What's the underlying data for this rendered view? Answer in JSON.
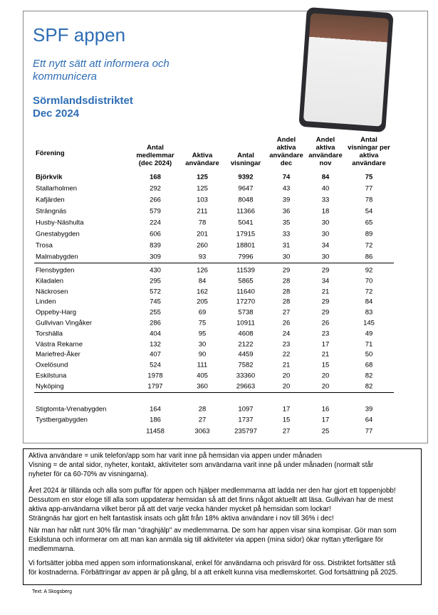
{
  "header": {
    "title": "SPF appen",
    "subtitle_lines": [
      "Ett nytt sätt att informera och",
      "kommunicera"
    ],
    "district": "Sörmlandsdistriktet",
    "period": "Dec 2024"
  },
  "table": {
    "columns": [
      "Förening",
      "Antal medlemmar (dec 2024)",
      "Aktiva användare",
      "Antal visningar",
      "Andel aktiva användare dec",
      "Andel aktiva användare nov",
      "Antal visningar per aktiva användare"
    ],
    "groups": [
      [
        [
          "Björkvik",
          168,
          125,
          9392,
          74,
          84,
          75
        ],
        [
          "Stallarholmen",
          292,
          125,
          9647,
          43,
          40,
          77
        ],
        [
          "Kafjärden",
          266,
          103,
          8048,
          39,
          33,
          78
        ],
        [
          "Strängnäs",
          579,
          211,
          11366,
          36,
          18,
          54
        ],
        [
          "Husby-Näshulta",
          224,
          78,
          5041,
          35,
          30,
          65
        ],
        [
          "Gnestabygden",
          606,
          201,
          17915,
          33,
          30,
          89
        ],
        [
          "Trosa",
          839,
          260,
          18801,
          31,
          34,
          72
        ],
        [
          "Malmabygden",
          309,
          93,
          7996,
          30,
          30,
          86
        ]
      ],
      [
        [
          "Flensbygden",
          430,
          126,
          11539,
          29,
          29,
          92
        ],
        [
          "Kiladalen",
          295,
          84,
          5865,
          28,
          34,
          70
        ],
        [
          "Näckrosen",
          572,
          162,
          11640,
          28,
          21,
          72
        ],
        [
          "Linden",
          745,
          205,
          17270,
          28,
          29,
          84
        ],
        [
          "Oppeby-Harg",
          255,
          69,
          5738,
          27,
          29,
          83
        ],
        [
          "Gullvivan Vingåker",
          286,
          75,
          10911,
          26,
          26,
          145
        ],
        [
          "Torshälla",
          404,
          95,
          4608,
          24,
          23,
          49
        ],
        [
          "Västra Rekarne",
          132,
          30,
          2122,
          23,
          17,
          71
        ],
        [
          "Mariefred-Åker",
          407,
          90,
          4459,
          22,
          21,
          50
        ],
        [
          "Oxelösund",
          524,
          111,
          7582,
          21,
          15,
          68
        ],
        [
          "Eskilstuna",
          1978,
          405,
          33360,
          20,
          20,
          82
        ],
        [
          "Nyköping",
          1797,
          360,
          29663,
          20,
          20,
          82
        ]
      ],
      [
        [
          "Stigtomta-Vrenabygden",
          164,
          28,
          1097,
          17,
          16,
          39
        ],
        [
          "Tystbergabygden",
          186,
          27,
          1737,
          15,
          17,
          64
        ]
      ]
    ],
    "totals": [
      11458,
      3063,
      235797,
      27,
      25,
      77
    ]
  },
  "notes": {
    "paragraphs": [
      [
        "Aktiva användare = unik telefon/app som har varit inne på hemsidan via appen under månaden",
        "Visning = de antal sidor, nyheter, kontakt, aktiviteter som användarna varit inne på under månaden (normalt står",
        "nyheter för ca 60-70% av visningarna)."
      ],
      [
        "Året 2024 är tillända och alla som puffar för appen och hjälper medlemmarna att ladda ner den har gjort ett toppenjobb!",
        "Dessutom en stor eloge till alla som uppdaterar hemsidan så att det finns något aktuellt att läsa. Gullvivan har de mest",
        "aktiva app-användarna vilket beror på att det varje vecka händer mycket på hemsidan som lockar!",
        "Strängnäs har gjort en helt fantastisk insats och gått från 18% aktiva användare i nov till 36% i dec!"
      ],
      [
        "När man har nått runt 30% får man \"draghjälp\" av medlemmarna. De som har appen visar sina kompisar. Gör man som",
        "Eskilstuna och informerar om att man kan anmäla sig till aktiviteter via appen (mina sidor) ökar nyttan ytterligare för",
        "medlemmarna."
      ],
      [
        "Vi fortsätter jobba med appen som informationskanal, enkel för användarna och prisvärd för oss. Distriktet fortsätter stå",
        "för kostnaderna. Förbättringar av appen är på gång, bl a att enkelt kunna visa medlemskortet. God fortsättning på 2025."
      ]
    ]
  },
  "footer": "Text: A Skogsberg"
}
